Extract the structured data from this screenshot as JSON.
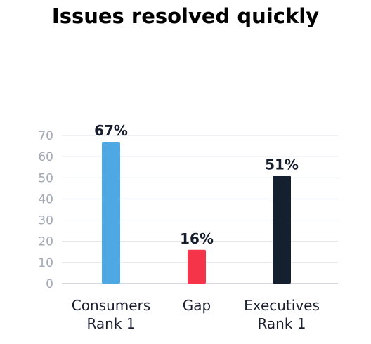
{
  "chart_data": {
    "type": "bar",
    "title": "Issues resolved quickly",
    "xlabel": "",
    "ylabel": "",
    "ylim": [
      0,
      70
    ],
    "yticks": [
      0,
      10,
      20,
      30,
      40,
      50,
      60,
      70
    ],
    "grid": true,
    "legend": "none",
    "categories": [
      [
        "Consumers",
        "Rank 1"
      ],
      [
        "Gap"
      ],
      [
        "Executives",
        "Rank 1"
      ]
    ],
    "values": [
      67,
      16,
      51
    ],
    "data_labels": [
      "67%",
      "16%",
      "51%"
    ],
    "colors": [
      "#4ea8e3",
      "#f5344a",
      "#141f30"
    ]
  }
}
